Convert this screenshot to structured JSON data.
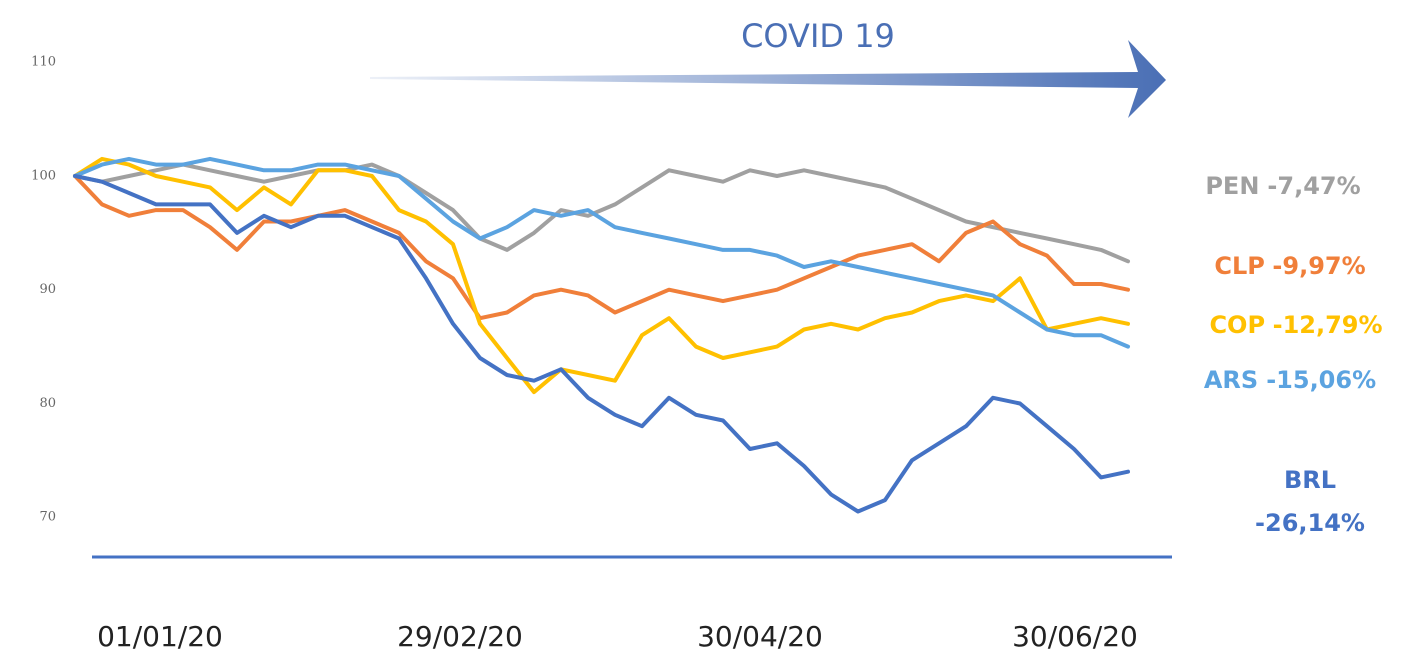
{
  "chart_data": {
    "type": "line",
    "annotation": "COVID 19",
    "x_labels": [
      "01/01/20",
      "29/02/20",
      "30/04/20",
      "30/06/20"
    ],
    "ylim": [
      66.5,
      112
    ],
    "yticks": [
      70,
      80,
      90,
      100,
      110
    ],
    "series": [
      {
        "name": "PEN",
        "end_label": "-7,47%",
        "color": "#a0a0a0",
        "values": [
          100,
          99.5,
          100,
          100.5,
          101,
          100.5,
          100,
          99.5,
          100,
          100.5,
          100.5,
          101,
          100,
          98.5,
          97,
          94.5,
          93.5,
          95,
          97,
          96.5,
          97.5,
          99,
          100.5,
          100,
          99.5,
          100.5,
          100,
          100.5,
          100,
          99.5,
          99,
          98,
          97,
          96,
          95.5,
          95,
          94.5,
          94,
          93.5,
          92.5
        ]
      },
      {
        "name": "CLP",
        "end_label": "-9,97%",
        "color": "#f07f3a",
        "values": [
          100,
          97.5,
          96.5,
          97,
          97,
          95.5,
          93.5,
          96,
          96,
          96.5,
          97,
          96,
          95,
          92.5,
          91,
          87.5,
          88,
          89.5,
          90,
          89.5,
          88,
          89,
          90,
          89.5,
          89,
          89.5,
          90,
          91,
          92,
          93,
          93.5,
          94,
          92.5,
          95,
          96,
          94,
          93,
          90.5,
          90.5,
          90
        ]
      },
      {
        "name": "COP",
        "end_label": "-12,79%",
        "color": "#ffc000",
        "values": [
          100,
          101.5,
          101,
          100,
          99.5,
          99,
          97,
          99,
          97.5,
          100.5,
          100.5,
          100,
          97,
          96,
          94,
          87,
          84,
          81,
          83,
          82.5,
          82,
          86,
          87.5,
          85,
          84,
          84.5,
          85,
          86.5,
          87,
          86.5,
          87.5,
          88,
          89,
          89.5,
          89,
          91,
          86.5,
          87,
          87.5,
          87
        ]
      },
      {
        "name": "ARS",
        "end_label": "-15,06%",
        "color": "#5ba3e0",
        "values": [
          100,
          101,
          101.5,
          101,
          101,
          101.5,
          101,
          100.5,
          100.5,
          101,
          101,
          100.5,
          100,
          98,
          96,
          94.5,
          95.5,
          97,
          96.5,
          97,
          95.5,
          95,
          94.5,
          94,
          93.5,
          93.5,
          93,
          92,
          92.5,
          92,
          91.5,
          91,
          90.5,
          90,
          89.5,
          88,
          86.5,
          86,
          86,
          85
        ]
      },
      {
        "name": "BRL",
        "end_label": "-26,14%",
        "color": "#4472c4",
        "values": [
          100,
          99.5,
          98.5,
          97.5,
          97.5,
          97.5,
          95,
          96.5,
          95.5,
          96.5,
          96.5,
          95.5,
          94.5,
          91,
          87,
          84,
          82.5,
          82,
          83,
          80.5,
          79,
          78,
          80.5,
          79,
          78.5,
          76,
          76.5,
          74.5,
          72,
          70.5,
          71.5,
          75,
          76.5,
          78,
          80.5,
          80,
          78,
          76,
          73.5,
          74
        ]
      }
    ]
  }
}
